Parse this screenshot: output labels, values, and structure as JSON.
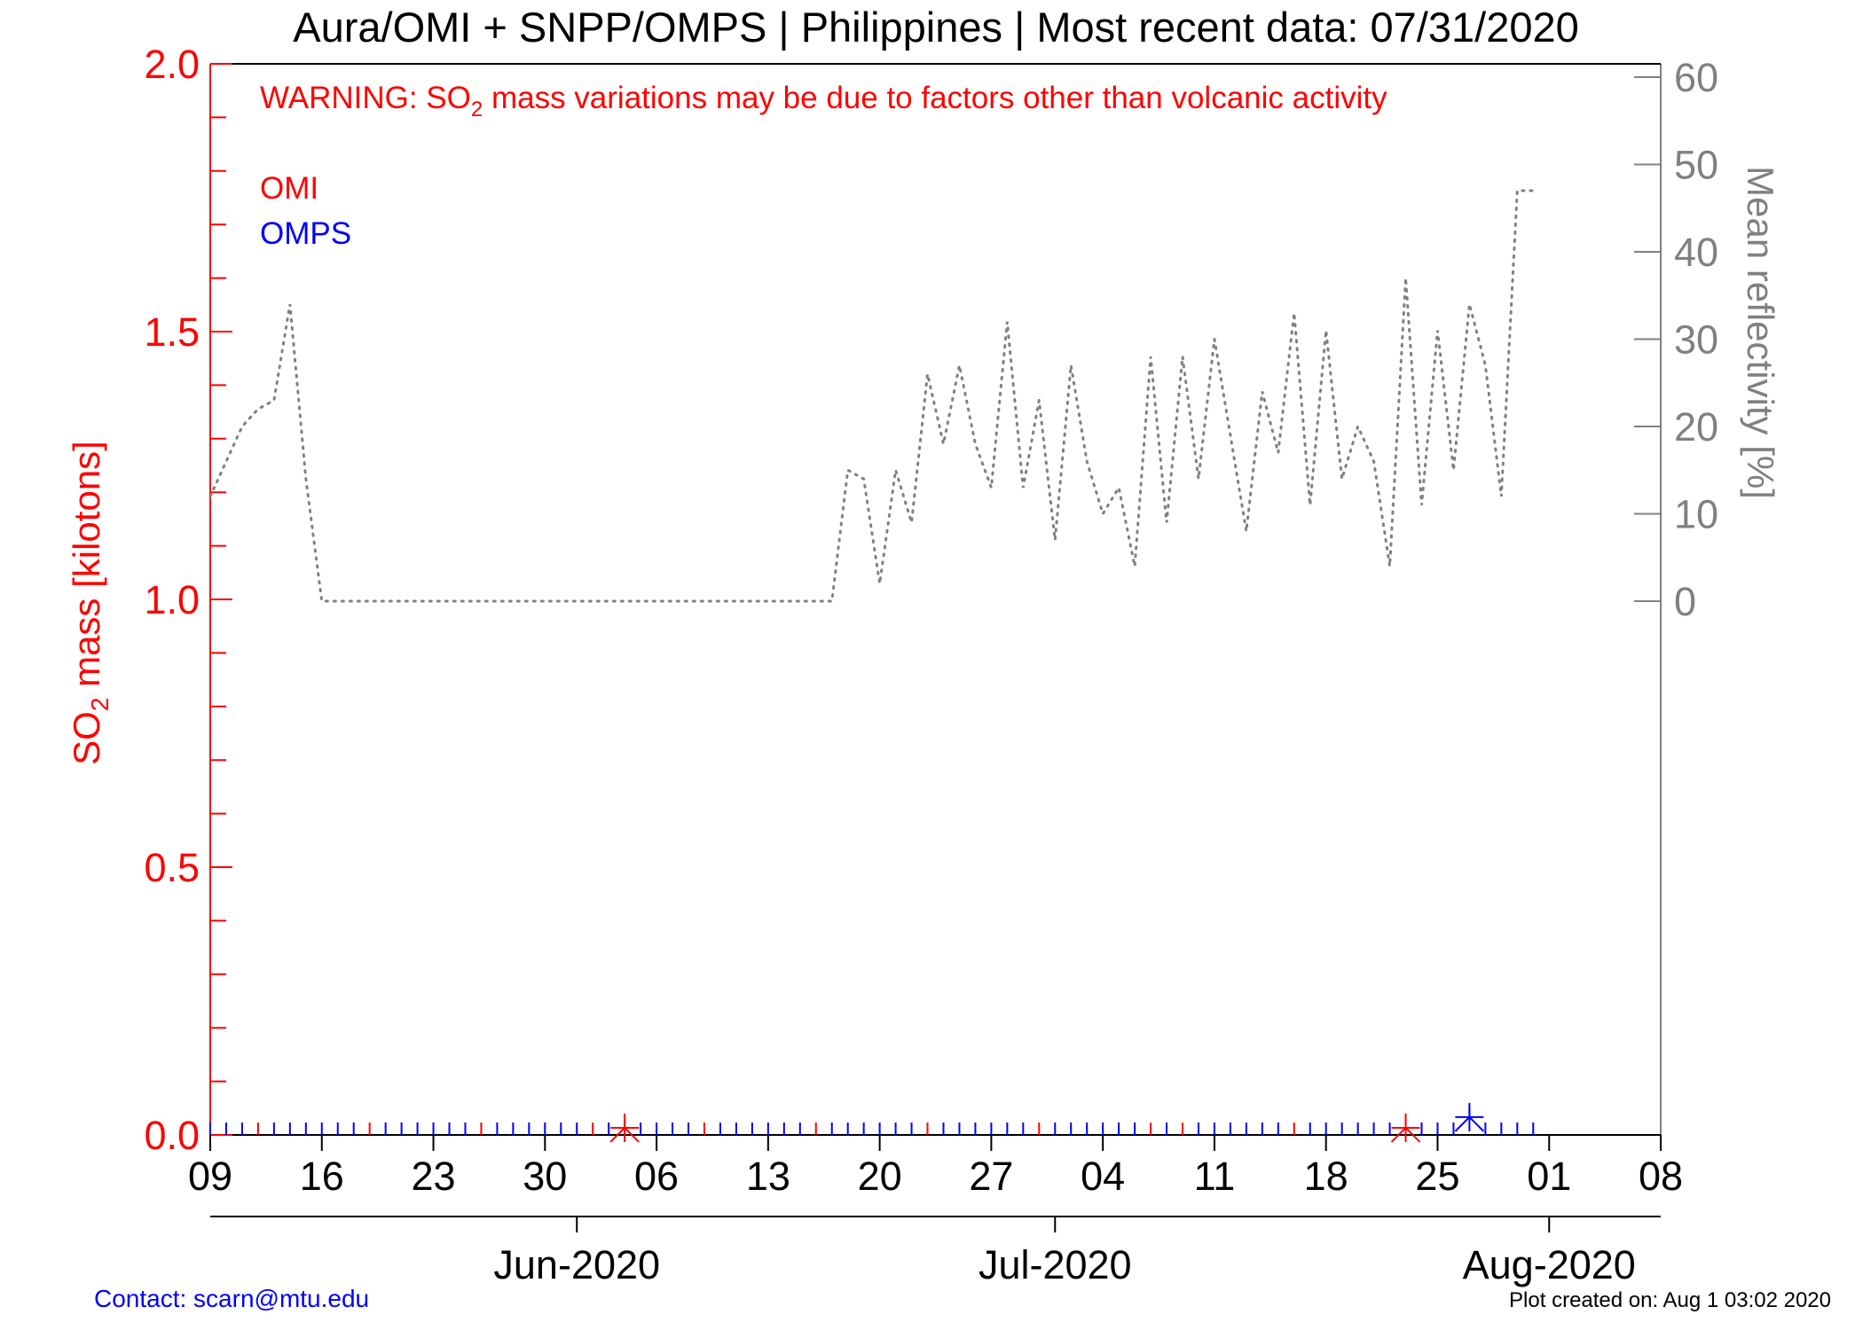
{
  "title": "Aura/OMI + SNPP/OMPS | Philippines | Most recent data: 07/31/2020",
  "warning": {
    "prefix": "WARNING: SO",
    "sub": "2",
    "suffix": " mass variations may be due to factors other than volcanic activity"
  },
  "legend": [
    {
      "label": "OMI",
      "color": "#ff0000"
    },
    {
      "label": "OMPS",
      "color": "#0000ff"
    }
  ],
  "ylabel_left": {
    "prefix": "SO",
    "sub": "2",
    "suffix": " mass [kilotons]"
  },
  "ylabel_right": "Mean reflectivity [%]",
  "footer": {
    "contact": "Contact: scarn@mtu.edu",
    "created": "Plot created on: Aug  1 03:02 2020"
  },
  "colors": {
    "omi": "#ff0000",
    "omps": "#0000ff",
    "reflectivity": "#808080",
    "axis": "#000000"
  },
  "chart_data": {
    "type": "line",
    "x_range": [
      "2020-05-09",
      "2020-08-08"
    ],
    "ylim_left": [
      0,
      2.0
    ],
    "ylim_right": [
      0,
      60
    ],
    "left_ticks": [
      "0.0",
      "0.5",
      "1.0",
      "1.5",
      "2.0"
    ],
    "right_ticks": [
      "0",
      "10",
      "20",
      "30",
      "40",
      "50",
      "60"
    ],
    "x_day_ticks": [
      {
        "date": "2020-05-09",
        "label": "09"
      },
      {
        "date": "2020-05-16",
        "label": "16"
      },
      {
        "date": "2020-05-23",
        "label": "23"
      },
      {
        "date": "2020-05-30",
        "label": "30"
      },
      {
        "date": "2020-06-06",
        "label": "06"
      },
      {
        "date": "2020-06-13",
        "label": "13"
      },
      {
        "date": "2020-06-20",
        "label": "20"
      },
      {
        "date": "2020-06-27",
        "label": "27"
      },
      {
        "date": "2020-07-04",
        "label": "04"
      },
      {
        "date": "2020-07-11",
        "label": "11"
      },
      {
        "date": "2020-07-18",
        "label": "18"
      },
      {
        "date": "2020-07-25",
        "label": "25"
      },
      {
        "date": "2020-08-01",
        "label": "01"
      },
      {
        "date": "2020-08-08",
        "label": "08"
      }
    ],
    "x_month_ticks": [
      {
        "date": "2020-06-01",
        "label": "Jun-2020"
      },
      {
        "date": "2020-07-01",
        "label": "Jul-2020"
      },
      {
        "date": "2020-08-01",
        "label": "Aug-2020"
      }
    ],
    "series": [
      {
        "name": "OMI",
        "axis": "left",
        "style": "ticks",
        "dates": [
          "2020-05-12",
          "2020-05-19",
          "2020-05-26",
          "2020-06-02",
          "2020-06-04",
          "2020-06-09",
          "2020-06-16",
          "2020-06-23",
          "2020-06-30",
          "2020-07-07",
          "2020-07-09",
          "2020-07-16",
          "2020-07-23"
        ],
        "values": [
          0,
          0,
          0,
          0,
          0.01,
          0,
          0,
          0,
          0,
          0,
          0,
          0,
          0.01
        ]
      },
      {
        "name": "OMPS",
        "axis": "left",
        "style": "ticks",
        "dates": [
          "2020-05-09",
          "2020-05-10",
          "2020-05-11",
          "2020-05-13",
          "2020-05-14",
          "2020-05-15",
          "2020-05-16",
          "2020-05-17",
          "2020-05-18",
          "2020-05-20",
          "2020-05-21",
          "2020-05-22",
          "2020-05-23",
          "2020-05-24",
          "2020-05-25",
          "2020-05-27",
          "2020-05-28",
          "2020-05-29",
          "2020-05-30",
          "2020-05-31",
          "2020-06-01",
          "2020-06-03",
          "2020-06-05",
          "2020-06-06",
          "2020-06-07",
          "2020-06-08",
          "2020-06-10",
          "2020-06-11",
          "2020-06-12",
          "2020-06-13",
          "2020-06-14",
          "2020-06-15",
          "2020-06-17",
          "2020-06-18",
          "2020-06-19",
          "2020-06-20",
          "2020-06-21",
          "2020-06-22",
          "2020-06-24",
          "2020-06-25",
          "2020-06-26",
          "2020-06-27",
          "2020-06-28",
          "2020-06-29",
          "2020-07-01",
          "2020-07-02",
          "2020-07-03",
          "2020-07-04",
          "2020-07-05",
          "2020-07-06",
          "2020-07-08",
          "2020-07-10",
          "2020-07-11",
          "2020-07-12",
          "2020-07-13",
          "2020-07-14",
          "2020-07-15",
          "2020-07-17",
          "2020-07-18",
          "2020-07-19",
          "2020-07-20",
          "2020-07-21",
          "2020-07-22",
          "2020-07-24",
          "2020-07-25",
          "2020-07-26",
          "2020-07-27",
          "2020-07-28",
          "2020-07-29",
          "2020-07-30",
          "2020-07-31"
        ],
        "values": [
          0,
          0,
          0,
          0,
          0,
          0,
          0,
          0,
          0,
          0,
          0,
          0,
          0,
          0,
          0,
          0,
          0,
          0,
          0,
          0,
          0,
          0,
          0,
          0,
          0,
          0,
          0,
          0,
          0,
          0,
          0,
          0,
          0,
          0,
          0,
          0,
          0,
          0,
          0,
          0,
          0,
          0,
          0,
          0,
          0,
          0,
          0,
          0,
          0,
          0,
          0,
          0,
          0,
          0,
          0,
          0,
          0,
          0,
          0,
          0,
          0,
          0,
          0,
          0,
          0,
          0,
          0.03,
          0,
          0,
          0,
          0
        ]
      },
      {
        "name": "Mean reflectivity",
        "axis": "right",
        "style": "dotted",
        "dates": [
          "2020-05-09",
          "2020-05-10",
          "2020-05-11",
          "2020-05-12",
          "2020-05-13",
          "2020-05-14",
          "2020-05-15",
          "2020-05-16",
          "2020-05-20",
          "2020-05-25",
          "2020-05-30",
          "2020-06-04",
          "2020-06-09",
          "2020-06-14",
          "2020-06-17",
          "2020-06-18",
          "2020-06-19",
          "2020-06-20",
          "2020-06-21",
          "2020-06-22",
          "2020-06-23",
          "2020-06-24",
          "2020-06-25",
          "2020-06-26",
          "2020-06-27",
          "2020-06-28",
          "2020-06-29",
          "2020-06-30",
          "2020-07-01",
          "2020-07-02",
          "2020-07-03",
          "2020-07-04",
          "2020-07-05",
          "2020-07-06",
          "2020-07-07",
          "2020-07-08",
          "2020-07-09",
          "2020-07-10",
          "2020-07-11",
          "2020-07-12",
          "2020-07-13",
          "2020-07-14",
          "2020-07-15",
          "2020-07-16",
          "2020-07-17",
          "2020-07-18",
          "2020-07-19",
          "2020-07-20",
          "2020-07-21",
          "2020-07-22",
          "2020-07-23",
          "2020-07-24",
          "2020-07-25",
          "2020-07-26",
          "2020-07-27",
          "2020-07-28",
          "2020-07-29",
          "2020-07-30",
          "2020-07-31"
        ],
        "values": [
          12,
          16,
          20,
          22,
          23,
          34,
          14,
          0,
          0,
          0,
          0,
          0,
          0,
          0,
          0,
          15,
          14,
          2,
          15,
          9,
          26,
          18,
          27,
          18,
          13,
          32,
          13,
          23,
          7,
          27,
          16,
          10,
          13,
          4,
          28,
          9,
          28,
          14,
          30,
          19,
          8,
          24,
          17,
          33,
          11,
          31,
          14,
          20,
          16,
          4,
          37,
          11,
          31,
          15,
          34,
          27,
          12,
          47,
          47
        ]
      }
    ]
  }
}
